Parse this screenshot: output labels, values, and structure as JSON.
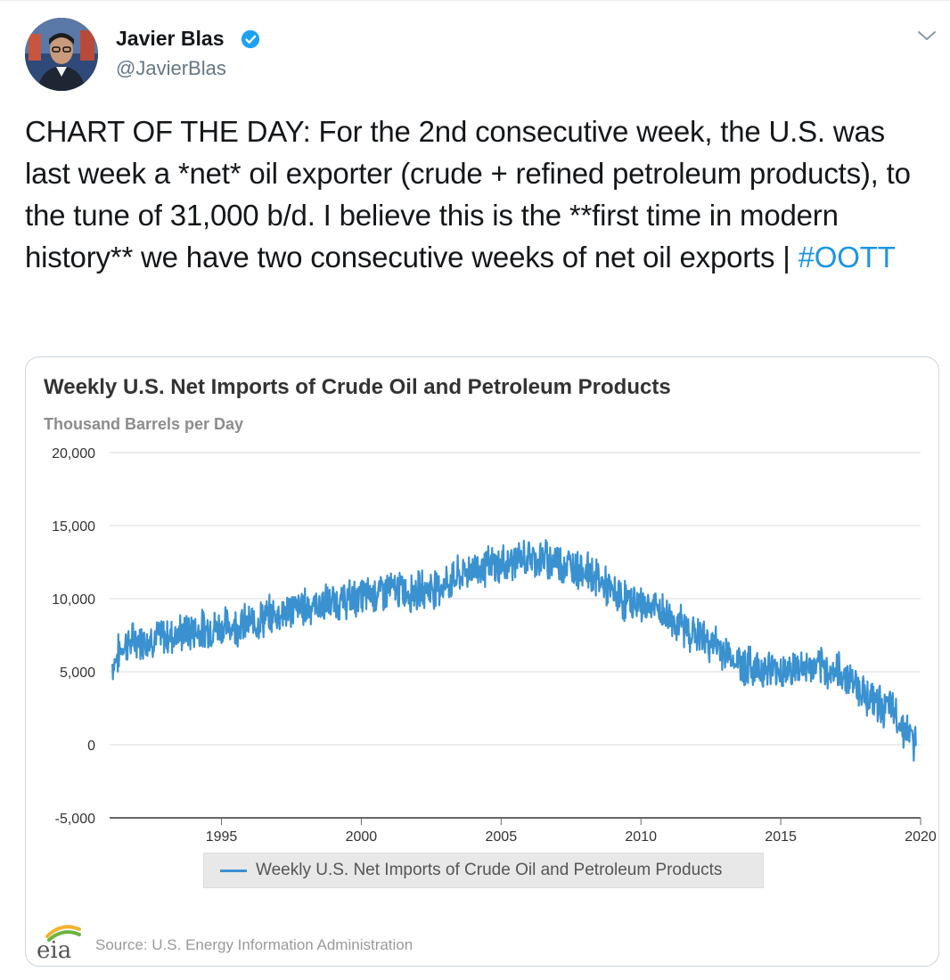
{
  "tweet": {
    "author_name": "Javier Blas",
    "author_handle": "@JavierBlas",
    "text": "CHART OF THE DAY: For the 2nd consecutive week, the U.S. was last week a *net* oil exporter (crude + refined petroleum products), to the tune of 31,000 b/d. I believe this is the **first time in modern history** we have two consecutive weeks of net oil exports | ",
    "hashtag": "#OOTT"
  },
  "card": {
    "source": "Source: U.S. Energy Information Administration",
    "logo_text": "eia"
  },
  "colors": {
    "series": "#3a91d0",
    "hashtag": "#1b95e0",
    "verified": "#1da1f2"
  },
  "chart_data": {
    "type": "line",
    "title": "Weekly U.S. Net Imports of Crude Oil and Petroleum Products",
    "subtitle": "Thousand Barrels per Day",
    "ylim": [
      -5000,
      20000
    ],
    "yticks": [
      20000,
      15000,
      10000,
      5000,
      0,
      -5000
    ],
    "ytick_labels": [
      "20,000",
      "15,000",
      "10,000",
      "5,000",
      "0",
      "-5,000"
    ],
    "xlim": [
      1991.0,
      2020.0
    ],
    "xticks": [
      1995,
      2000,
      2005,
      2010,
      2015,
      2020
    ],
    "xtick_labels": [
      "1995",
      "2000",
      "2005",
      "2010",
      "2015",
      "2020"
    ],
    "grid": true,
    "legend_position": "bottom",
    "series": [
      {
        "name": "Weekly U.S. Net Imports of Crude Oil and Petroleum Products",
        "x": [
          1991.1,
          1991.5,
          1992.0,
          1993.0,
          1994.0,
          1995.0,
          1996.0,
          1997.0,
          1998.0,
          1999.0,
          2000.0,
          2001.0,
          2002.0,
          2003.0,
          2004.0,
          2005.0,
          2005.5,
          2006.0,
          2006.5,
          2007.0,
          2007.5,
          2008.0,
          2008.5,
          2009.0,
          2009.5,
          2010.0,
          2010.5,
          2011.0,
          2012.0,
          2013.0,
          2013.5,
          2014.0,
          2015.0,
          2016.0,
          2017.0,
          2017.5,
          2018.0,
          2018.5,
          2019.0,
          2019.4,
          2019.7,
          2019.85
        ],
        "y": [
          5500,
          6800,
          7200,
          7400,
          7800,
          8100,
          8300,
          9000,
          9500,
          9700,
          10100,
          10600,
          10500,
          11000,
          12100,
          12300,
          12600,
          12800,
          12700,
          12600,
          12200,
          12000,
          11300,
          10300,
          9800,
          9600,
          9400,
          8700,
          7500,
          6400,
          5600,
          5300,
          5100,
          5300,
          5000,
          4600,
          3500,
          2800,
          2300,
          1200,
          400,
          -31
        ]
      }
    ],
    "annotations": []
  }
}
